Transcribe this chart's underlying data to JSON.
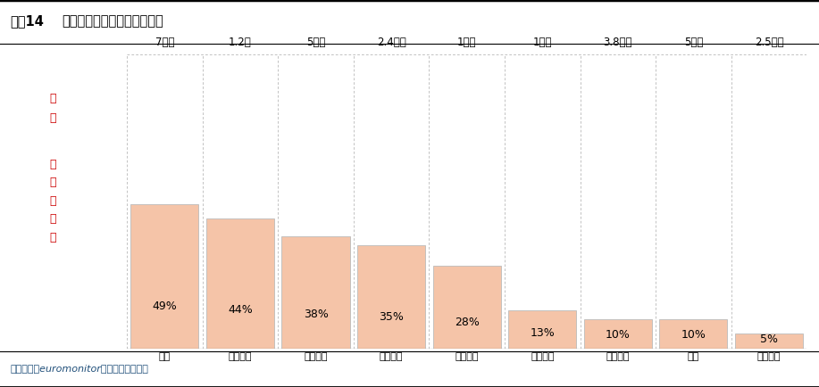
{
  "title_num": "图表14",
  "title_body": "各品类行业规模和电商渗透率",
  "categories": [
    "家电",
    "消费电子",
    "美妆个护",
    "服饰鞋履",
    "家庭清洁",
    "个人配饰",
    "食品饮料",
    "生鲜",
    "家居家装"
  ],
  "market_sizes": [
    "7千亿",
    "1.2亿",
    "5千亿",
    "2.4万亿",
    "1万亿",
    "1万亿",
    "3.8万亿",
    "5万亿",
    "2.5万亿"
  ],
  "penetration_rates": [
    0.49,
    0.44,
    0.38,
    0.35,
    0.28,
    0.13,
    0.1,
    0.1,
    0.05
  ],
  "penetration_labels": [
    "49%",
    "44%",
    "38%",
    "35%",
    "28%",
    "13%",
    "10%",
    "10%",
    "5%"
  ],
  "bar_color": "#F5C4A8",
  "bar_edge_color": "#BBBBBB",
  "bg_color": "#FFFFFF",
  "red_color": "#CC0000",
  "footer_text": "资料来源：euromonitor，平安证券研究所",
  "footer_color": "#1F4E79",
  "label_guimo": "规\n模",
  "label_diangshang": "电\n商\n渗\n透\n率"
}
